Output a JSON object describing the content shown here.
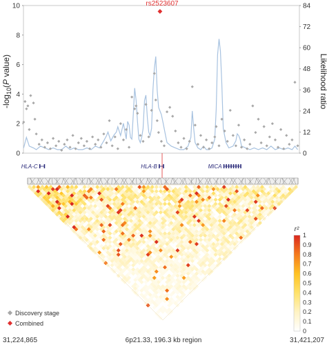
{
  "chart_data": {
    "type": "scatter",
    "left_axis": {
      "label_parts": [
        "-log",
        "10",
        "(",
        "P",
        " value)"
      ],
      "ylim": [
        0,
        10
      ],
      "ticks": [
        "0",
        "2",
        "4",
        "6",
        "8",
        "10"
      ]
    },
    "right_axis": {
      "label": "Likelihood ratio",
      "ylim": [
        0,
        84
      ],
      "ticks": [
        "0",
        "12",
        "24",
        "36",
        "48",
        "60",
        "72",
        "84"
      ]
    },
    "top_snp": {
      "label": "rs2523607",
      "x": 31322.0,
      "pvalue_log": 9.6,
      "color": "#e03030"
    },
    "genes": [
      {
        "name": "HLA-C",
        "start": 31236.5,
        "end": 31239.8
      },
      {
        "name": "HLA-B",
        "start": 31321.5,
        "end": 31324.5
      },
      {
        "name": "MICA",
        "start": 31367.5,
        "end": 31379.5
      }
    ],
    "x_range_kb": [
      31224.865,
      31421.207
    ],
    "x_labels": {
      "left": "31,224,865",
      "center": "6p21.33, 196.3 kb region",
      "right": "31,421,207"
    },
    "series": [
      {
        "name": "Discovery stage",
        "color": "#a8a8a8",
        "points": [
          [
            31225,
            2.1
          ],
          [
            31226,
            3.5
          ],
          [
            31227,
            3.0
          ],
          [
            31228,
            3.2
          ],
          [
            31229,
            1.6
          ],
          [
            31230,
            3.9
          ],
          [
            31232,
            3.4
          ],
          [
            31233,
            2.3
          ],
          [
            31234,
            1.3
          ],
          [
            31236,
            0.6
          ],
          [
            31238,
            0.9
          ],
          [
            31240,
            0.4
          ],
          [
            31242,
            0.7
          ],
          [
            31244,
            0.3
          ],
          [
            31246,
            1.0
          ],
          [
            31248,
            0.5
          ],
          [
            31250,
            0.8
          ],
          [
            31252,
            0.2
          ],
          [
            31254,
            0.6
          ],
          [
            31256,
            0.9
          ],
          [
            31258,
            0.4
          ],
          [
            31260,
            1.2
          ],
          [
            31262,
            0.3
          ],
          [
            31264,
            0.7
          ],
          [
            31266,
            1.0
          ],
          [
            31268,
            0.5
          ],
          [
            31270,
            0.8
          ],
          [
            31272,
            0.3
          ],
          [
            31274,
            1.1
          ],
          [
            31276,
            0.6
          ],
          [
            31278,
            0.9
          ],
          [
            31280,
            0.4
          ],
          [
            31282,
            1.3
          ],
          [
            31284,
            0.7
          ],
          [
            31286,
            2.2
          ],
          [
            31288,
            0.5
          ],
          [
            31290,
            1.1
          ],
          [
            31292,
            0.3
          ],
          [
            31294,
            2.0
          ],
          [
            31296,
            0.9
          ],
          [
            31298,
            1.6
          ],
          [
            31300,
            0.4
          ],
          [
            31302,
            3.8
          ],
          [
            31304,
            3.0
          ],
          [
            31305,
            3.2
          ],
          [
            31306,
            2.7
          ],
          [
            31308,
            1.2
          ],
          [
            31310,
            0.8
          ],
          [
            31312,
            3.3
          ],
          [
            31314,
            1.1
          ],
          [
            31316,
            2.9
          ],
          [
            31318,
            5.4
          ],
          [
            31319,
            3.6
          ],
          [
            31320,
            2.2
          ],
          [
            31321,
            1.4
          ],
          [
            31323,
            0.8
          ],
          [
            31325,
            0.5
          ],
          [
            31327,
            2.8
          ],
          [
            31329,
            3.1
          ],
          [
            31331,
            2.5
          ],
          [
            31333,
            1.5
          ],
          [
            31335,
            0.7
          ],
          [
            31337,
            0.4
          ],
          [
            31339,
            1.0
          ],
          [
            31341,
            0.3
          ],
          [
            31343,
            0.8
          ],
          [
            31345,
            4.5
          ],
          [
            31347,
            1.9
          ],
          [
            31349,
            0.6
          ],
          [
            31351,
            1.2
          ],
          [
            31353,
            0.4
          ],
          [
            31355,
            0.9
          ],
          [
            31357,
            0.3
          ],
          [
            31359,
            0.7
          ],
          [
            31361,
            1.1
          ],
          [
            31362,
            1.8
          ],
          [
            31364,
            0.5
          ],
          [
            31366,
            2.3
          ],
          [
            31368,
            1.5
          ],
          [
            31370,
            0.8
          ],
          [
            31372,
            2.9
          ],
          [
            31374,
            1.2
          ],
          [
            31376,
            0.5
          ],
          [
            31378,
            1.9
          ],
          [
            31380,
            0.4
          ],
          [
            31382,
            0.9
          ],
          [
            31384,
            0.3
          ],
          [
            31386,
            0.6
          ],
          [
            31388,
            3.2
          ],
          [
            31390,
            1.4
          ],
          [
            31392,
            2.3
          ],
          [
            31394,
            0.7
          ],
          [
            31396,
            1.8
          ],
          [
            31398,
            0.5
          ],
          [
            31400,
            1.1
          ],
          [
            31402,
            2.0
          ],
          [
            31404,
            0.9
          ],
          [
            31406,
            0.4
          ],
          [
            31408,
            1.6
          ],
          [
            31410,
            0.3
          ],
          [
            31412,
            1.2
          ],
          [
            31414,
            0.6
          ],
          [
            31416,
            0.9
          ],
          [
            31418,
            4.8
          ],
          [
            31420,
            0.5
          ]
        ]
      },
      {
        "name": "Combined",
        "color": "#e03030",
        "points": [
          [
            31322.0,
            9.6
          ]
        ]
      }
    ],
    "likelihood_ratio": {
      "color": "#a7c2e0",
      "points": [
        [
          31225,
          3
        ],
        [
          31227,
          9
        ],
        [
          31229,
          4
        ],
        [
          31232,
          3
        ],
        [
          31234,
          2
        ],
        [
          31237,
          4
        ],
        [
          31240,
          3
        ],
        [
          31243,
          2
        ],
        [
          31246,
          3
        ],
        [
          31249,
          2
        ],
        [
          31252,
          2
        ],
        [
          31255,
          4
        ],
        [
          31258,
          2
        ],
        [
          31261,
          3
        ],
        [
          31264,
          2
        ],
        [
          31267,
          2
        ],
        [
          31270,
          3
        ],
        [
          31273,
          2
        ],
        [
          31276,
          4
        ],
        [
          31279,
          3
        ],
        [
          31282,
          7
        ],
        [
          31284,
          10
        ],
        [
          31285,
          12
        ],
        [
          31287,
          7
        ],
        [
          31289,
          10
        ],
        [
          31291,
          12
        ],
        [
          31292,
          15
        ],
        [
          31294,
          10
        ],
        [
          31296,
          17
        ],
        [
          31298,
          8
        ],
        [
          31299,
          18
        ],
        [
          31300,
          16
        ],
        [
          31301,
          9
        ],
        [
          31302,
          8
        ],
        [
          31303,
          22
        ],
        [
          31304,
          37
        ],
        [
          31305,
          30
        ],
        [
          31306,
          18
        ],
        [
          31307,
          8
        ],
        [
          31308,
          6
        ],
        [
          31309,
          9
        ],
        [
          31310,
          14
        ],
        [
          31311,
          30
        ],
        [
          31312,
          33
        ],
        [
          31313,
          20
        ],
        [
          31314,
          12
        ],
        [
          31315,
          10
        ],
        [
          31316,
          14
        ],
        [
          31317,
          36
        ],
        [
          31318,
          48
        ],
        [
          31319,
          55
        ],
        [
          31320,
          36
        ],
        [
          31321,
          26
        ],
        [
          31322,
          24
        ],
        [
          31323,
          22
        ],
        [
          31324,
          18
        ],
        [
          31325,
          14
        ],
        [
          31326,
          10
        ],
        [
          31327,
          6
        ],
        [
          31330,
          4
        ],
        [
          31333,
          3
        ],
        [
          31336,
          2
        ],
        [
          31339,
          2
        ],
        [
          31342,
          4
        ],
        [
          31344,
          9
        ],
        [
          31345,
          24
        ],
        [
          31346,
          14
        ],
        [
          31347,
          6
        ],
        [
          31349,
          3
        ],
        [
          31351,
          2
        ],
        [
          31353,
          4
        ],
        [
          31355,
          2
        ],
        [
          31357,
          2
        ],
        [
          31359,
          3
        ],
        [
          31361,
          8
        ],
        [
          31362,
          25
        ],
        [
          31363,
          56
        ],
        [
          31364,
          65
        ],
        [
          31365,
          58
        ],
        [
          31366,
          40
        ],
        [
          31367,
          14
        ],
        [
          31369,
          6
        ],
        [
          31371,
          3
        ],
        [
          31374,
          4
        ],
        [
          31376,
          7
        ],
        [
          31377,
          11
        ],
        [
          31378,
          10
        ],
        [
          31379,
          8
        ],
        [
          31380,
          4
        ],
        [
          31383,
          3
        ],
        [
          31386,
          2
        ],
        [
          31389,
          3
        ],
        [
          31392,
          2
        ],
        [
          31395,
          3
        ],
        [
          31398,
          2
        ],
        [
          31401,
          4
        ],
        [
          31404,
          2
        ],
        [
          31407,
          3
        ],
        [
          31410,
          2
        ],
        [
          31413,
          3
        ],
        [
          31416,
          2
        ],
        [
          31418,
          4
        ],
        [
          31420,
          2
        ]
      ]
    },
    "ld_heatmap": {
      "type": "heatmap",
      "colorbar_label": "r²",
      "colorbar_ticks": [
        "0",
        "0.1",
        "0.2",
        "0.3",
        "0.4",
        "0.5",
        "0.6",
        "0.7",
        "0.8",
        "0.9",
        "1"
      ],
      "color_stops": [
        "#ffffff",
        "#fff3c4",
        "#ffe26a",
        "#ffc223",
        "#f57a1c",
        "#d9281e"
      ]
    },
    "legend": [
      {
        "label": "Discovery stage",
        "color": "#a8a8a8",
        "marker": "diamond"
      },
      {
        "label": "Combined",
        "color": "#e03030",
        "marker": "diamond"
      }
    ]
  }
}
